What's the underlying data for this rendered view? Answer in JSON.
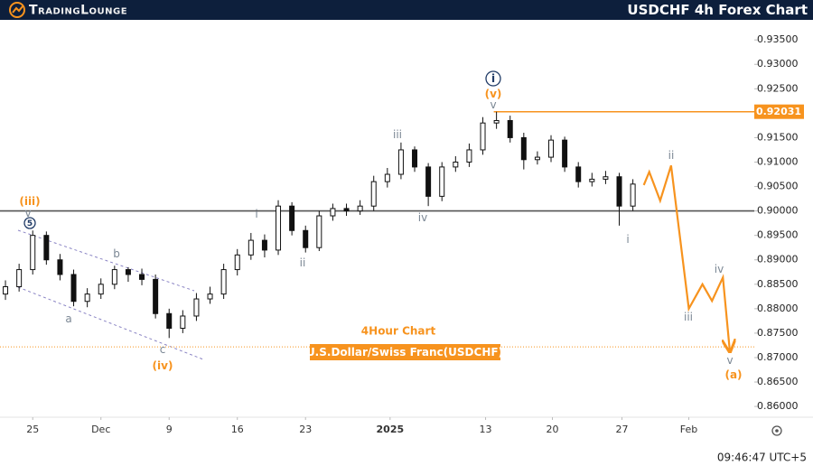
{
  "chart_data": {
    "type": "ohlc",
    "brand": "TradingLounge",
    "title": "USDCHF 4h Forex Chart",
    "subtitle": "4Hour Chart",
    "instrument": "U.S.Dollar/Swiss Franc(USDCHF)",
    "clock": "09:46:47 UTC+5",
    "bar_color": "#111111",
    "x": [
      -2,
      -1,
      0,
      1,
      2,
      3,
      4,
      5,
      6,
      7,
      8,
      9,
      10,
      11,
      12,
      13,
      14,
      15,
      16,
      17,
      18,
      19,
      20,
      21,
      22,
      23,
      24,
      25,
      26,
      27,
      28,
      29,
      30,
      31,
      32,
      33,
      34,
      35,
      36,
      37,
      38,
      39,
      40,
      41,
      42,
      43,
      44
    ],
    "open": [
      0.883,
      0.8845,
      0.888,
      0.895,
      0.89,
      0.887,
      0.8815,
      0.883,
      0.885,
      0.888,
      0.887,
      0.886,
      0.879,
      0.876,
      0.8785,
      0.882,
      0.883,
      0.888,
      0.891,
      0.894,
      0.892,
      0.901,
      0.896,
      0.8925,
      0.899,
      0.9005,
      0.9,
      0.901,
      0.906,
      0.9075,
      0.9125,
      0.909,
      0.903,
      0.909,
      0.91,
      0.9125,
      0.918,
      0.9185,
      0.915,
      0.9105,
      0.911,
      0.9145,
      0.909,
      0.906,
      0.9065,
      0.907,
      0.901
    ],
    "high": [
      0.8858,
      0.8892,
      0.896,
      0.8958,
      0.8912,
      0.888,
      0.8842,
      0.8862,
      0.8888,
      0.8885,
      0.8882,
      0.887,
      0.88,
      0.8797,
      0.8832,
      0.8845,
      0.8892,
      0.8922,
      0.8955,
      0.8952,
      0.9022,
      0.9018,
      0.897,
      0.9,
      0.9015,
      0.9015,
      0.9022,
      0.9072,
      0.9088,
      0.914,
      0.9132,
      0.9098,
      0.91,
      0.9112,
      0.9138,
      0.9192,
      0.9203,
      0.9195,
      0.916,
      0.9122,
      0.9155,
      0.9152,
      0.91,
      0.9078,
      0.9082,
      0.9078,
      0.9065
    ],
    "low": [
      0.8818,
      0.8835,
      0.887,
      0.889,
      0.8858,
      0.8805,
      0.8803,
      0.882,
      0.884,
      0.8855,
      0.8848,
      0.878,
      0.874,
      0.875,
      0.8775,
      0.881,
      0.882,
      0.8868,
      0.89,
      0.8905,
      0.891,
      0.895,
      0.8915,
      0.8918,
      0.898,
      0.899,
      0.8992,
      0.9,
      0.9048,
      0.9065,
      0.908,
      0.901,
      0.902,
      0.908,
      0.909,
      0.9115,
      0.9168,
      0.914,
      0.9085,
      0.9095,
      0.91,
      0.908,
      0.9048,
      0.905,
      0.9055,
      0.897,
      0.9
    ],
    "close": [
      0.8845,
      0.888,
      0.895,
      0.89,
      0.887,
      0.8815,
      0.883,
      0.885,
      0.888,
      0.887,
      0.886,
      0.879,
      0.876,
      0.8785,
      0.882,
      0.883,
      0.888,
      0.891,
      0.894,
      0.892,
      0.901,
      0.896,
      0.8925,
      0.899,
      0.9005,
      0.9,
      0.901,
      0.906,
      0.9075,
      0.9125,
      0.909,
      0.903,
      0.909,
      0.91,
      0.9125,
      0.918,
      0.9185,
      0.915,
      0.9105,
      0.911,
      0.9145,
      0.909,
      0.906,
      0.9065,
      0.907,
      0.901,
      0.9055
    ],
    "xlim": [
      -2.4,
      52.9
    ],
    "xticks": [
      {
        "value": 0,
        "label": "25"
      },
      {
        "value": 5,
        "label": "Dec"
      },
      {
        "value": 10,
        "label": "9"
      },
      {
        "value": 15,
        "label": "16"
      },
      {
        "value": 20,
        "label": "23"
      },
      {
        "value": 26.2,
        "label": "2025"
      },
      {
        "value": 33.2,
        "label": "13"
      },
      {
        "value": 38.1,
        "label": "20"
      },
      {
        "value": 43.2,
        "label": "27"
      },
      {
        "value": 48.1,
        "label": "Feb"
      }
    ],
    "ylim": [
      0.8578,
      0.9391
    ],
    "yticks": [
      {
        "value": 0.935,
        "label": "0.93500"
      },
      {
        "value": 0.93,
        "label": "0.93000"
      },
      {
        "value": 0.925,
        "label": "0.92500"
      },
      {
        "value": 0.915,
        "label": "0.91500"
      },
      {
        "value": 0.91,
        "label": "0.91000"
      },
      {
        "value": 0.905,
        "label": "0.90500"
      },
      {
        "value": 0.9,
        "label": "0.90000"
      },
      {
        "value": 0.895,
        "label": "0.89500"
      },
      {
        "value": 0.89,
        "label": "0.89000"
      },
      {
        "value": 0.885,
        "label": "0.88500"
      },
      {
        "value": 0.88,
        "label": "0.88000"
      },
      {
        "value": 0.875,
        "label": "0.87500"
      },
      {
        "value": 0.87,
        "label": "0.87000"
      },
      {
        "value": 0.865,
        "label": "0.86500"
      },
      {
        "value": 0.86,
        "label": "0.86000"
      }
    ],
    "pivot_line": 0.9,
    "pivot_color": "#555555",
    "resistance": 0.92031,
    "resistance_start": 33.8,
    "resistance_color": "#f7931e",
    "target_line": 0.8722,
    "target_color": "#f7931e",
    "projection": {
      "color": "#f7931e",
      "x": [
        44.8,
        45.2,
        46.0,
        46.8,
        48.1,
        49.1,
        49.8,
        50.6,
        51.1
      ],
      "y": [
        0.9053,
        0.908,
        0.9021,
        0.9093,
        0.88,
        0.885,
        0.8816,
        0.8864,
        0.8715
      ]
    },
    "wave_labels": [
      {
        "text": "(iii)",
        "color": "#f7931e"
      },
      {
        "text": "v",
        "color": "#7b8794"
      },
      {
        "text": "5",
        "color": "#1f3a66",
        "circled": true
      },
      {
        "text": "a",
        "color": "#7b8794"
      },
      {
        "text": "b",
        "color": "#7b8794"
      },
      {
        "text": "c",
        "color": "#7b8794"
      },
      {
        "text": "(iv)",
        "color": "#f7931e"
      },
      {
        "text": "i",
        "color": "#7b8794"
      },
      {
        "text": "ii",
        "color": "#7b8794"
      },
      {
        "text": "iii",
        "color": "#7b8794"
      },
      {
        "text": "iv",
        "color": "#7b8794"
      },
      {
        "text": "i",
        "color": "#1f3a66",
        "circled": true
      },
      {
        "text": "(v)",
        "color": "#f7931e"
      },
      {
        "text": "v",
        "color": "#7b8794"
      },
      {
        "text": "i",
        "color": "#7b8794"
      },
      {
        "text": "ii",
        "color": "#7b8794"
      },
      {
        "text": "iii",
        "color": "#7b8794"
      },
      {
        "text": "iv",
        "color": "#7b8794"
      },
      {
        "text": "v",
        "color": "#7b8794"
      },
      {
        "text": "(a)",
        "color": "#f7931e"
      }
    ]
  }
}
